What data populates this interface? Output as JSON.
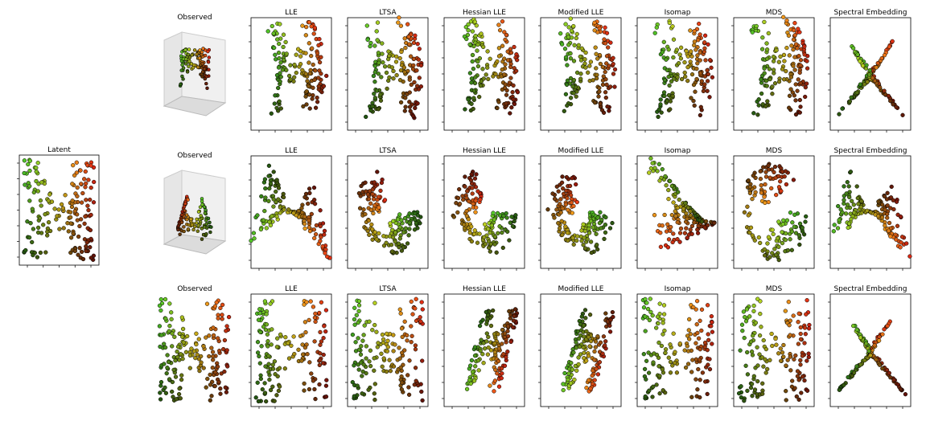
{
  "figure": {
    "row_titles": {
      "observed": "Observed",
      "latent": "Latent"
    },
    "method_titles": [
      "LLE",
      "LTSA",
      "Hessian LLE",
      "Modified LLE",
      "Isomap",
      "MDS",
      "Spectral Embedding"
    ]
  },
  "chart_data": [
    {
      "type": "scatter",
      "panel": "latent",
      "title": "Latent",
      "shape": "H",
      "colormap": "green-yellow-red",
      "3d": false
    },
    {
      "type": "scatter",
      "panel": "row1-observed",
      "title": "Observed",
      "shape": "folded-surface",
      "3d": true
    },
    {
      "type": "scatter",
      "panel": "row1-lle",
      "title": "LLE",
      "shape": "distorted-H"
    },
    {
      "type": "scatter",
      "panel": "row1-ltsa",
      "title": "LTSA",
      "shape": "distorted-H"
    },
    {
      "type": "scatter",
      "panel": "row1-hessian-lle",
      "title": "Hessian LLE",
      "shape": "distorted-H"
    },
    {
      "type": "scatter",
      "panel": "row1-modified-lle",
      "title": "Modified LLE",
      "shape": "distorted-H"
    },
    {
      "type": "scatter",
      "panel": "row1-isomap",
      "title": "Isomap",
      "shape": "distorted-H"
    },
    {
      "type": "scatter",
      "panel": "row1-mds",
      "title": "MDS",
      "shape": "distorted-H"
    },
    {
      "type": "scatter",
      "panel": "row1-spectral",
      "title": "Spectral Embedding",
      "shape": "butterfly"
    },
    {
      "type": "scatter",
      "panel": "row2-observed",
      "title": "Observed",
      "shape": "twisted-surface",
      "3d": true
    },
    {
      "type": "scatter",
      "panel": "row2-lle",
      "title": "LLE",
      "shape": "tri-arm"
    },
    {
      "type": "scatter",
      "panel": "row2-ltsa",
      "title": "LTSA",
      "shape": "swirl"
    },
    {
      "type": "scatter",
      "panel": "row2-hessian-lle",
      "title": "Hessian LLE",
      "shape": "swirl"
    },
    {
      "type": "scatter",
      "panel": "row2-modified-lle",
      "title": "Modified LLE",
      "shape": "swirl"
    },
    {
      "type": "scatter",
      "panel": "row2-isomap",
      "title": "Isomap",
      "shape": "fan"
    },
    {
      "type": "scatter",
      "panel": "row2-mds",
      "title": "MDS",
      "shape": "pinwheel"
    },
    {
      "type": "scatter",
      "panel": "row2-spectral",
      "title": "Spectral Embedding",
      "shape": "tri-arm"
    },
    {
      "type": "scatter",
      "panel": "row3-observed",
      "title": "Observed",
      "shape": "H",
      "3d": false
    },
    {
      "type": "scatter",
      "panel": "row3-lle",
      "title": "LLE",
      "shape": "H"
    },
    {
      "type": "scatter",
      "panel": "row3-ltsa",
      "title": "LTSA",
      "shape": "H"
    },
    {
      "type": "scatter",
      "panel": "row3-hessian-lle",
      "title": "Hessian LLE",
      "shape": "sheared-H"
    },
    {
      "type": "scatter",
      "panel": "row3-modified-lle",
      "title": "Modified LLE",
      "shape": "sheared-H"
    },
    {
      "type": "scatter",
      "panel": "row3-isomap",
      "title": "Isomap",
      "shape": "H"
    },
    {
      "type": "scatter",
      "panel": "row3-mds",
      "title": "MDS",
      "shape": "H"
    },
    {
      "type": "scatter",
      "panel": "row3-spectral",
      "title": "Spectral Embedding",
      "shape": "butterfly"
    }
  ]
}
